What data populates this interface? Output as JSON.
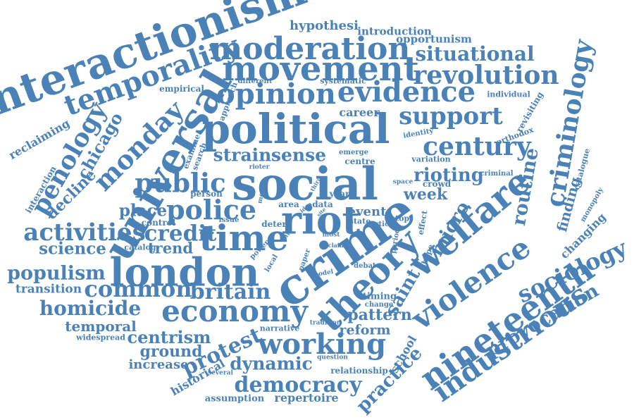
{
  "cloud": {
    "color": "#4a82b8",
    "background": "#ffffff",
    "words": [
      {
        "name": "word-interactionism",
        "text": "interactionism"
      },
      {
        "name": "word-temporality",
        "text": "temporality"
      },
      {
        "name": "word-hypothesi",
        "text": "hypothesi"
      },
      {
        "name": "word-introduction",
        "text": "introduction"
      },
      {
        "name": "word-opportunism",
        "text": "opportunism"
      },
      {
        "name": "word-moderation",
        "text": "moderation"
      },
      {
        "name": "word-situational",
        "text": "situational"
      },
      {
        "name": "word-movement",
        "text": "movement"
      },
      {
        "name": "word-revolution",
        "text": "revolution"
      },
      {
        "name": "word-criminology",
        "text": "criminology"
      },
      {
        "name": "word-empirical",
        "text": "empirical"
      },
      {
        "name": "word-different",
        "text": "different"
      },
      {
        "name": "word-systematic",
        "text": "systematic"
      },
      {
        "name": "word-opinion",
        "text": "opinion"
      },
      {
        "name": "word-evidence",
        "text": "evidence"
      },
      {
        "name": "word-individual",
        "text": "individual"
      },
      {
        "name": "word-approach",
        "text": "approach"
      },
      {
        "name": "word-career",
        "text": "career"
      },
      {
        "name": "word-support",
        "text": "support"
      },
      {
        "name": "word-revisiting",
        "text": "revisiting"
      },
      {
        "name": "word-universal",
        "text": "universal"
      },
      {
        "name": "word-political",
        "text": "political"
      },
      {
        "name": "word-identity",
        "text": "identity"
      },
      {
        "name": "word-orthodox",
        "text": "orthodox"
      },
      {
        "name": "word-penology",
        "text": "penology"
      },
      {
        "name": "word-chicago",
        "text": "chicago"
      },
      {
        "name": "word-monday",
        "text": "monday"
      },
      {
        "name": "word-century",
        "text": "century"
      },
      {
        "name": "word-reclaiming",
        "text": "reclaiming"
      },
      {
        "name": "word-examine",
        "text": "examine"
      },
      {
        "name": "word-search",
        "text": "search"
      },
      {
        "name": "word-strain",
        "text": "strain"
      },
      {
        "name": "word-sense",
        "text": "sense"
      },
      {
        "name": "word-emerge",
        "text": "emerge"
      },
      {
        "name": "word-centre",
        "text": "centre"
      },
      {
        "name": "word-variation",
        "text": "variation"
      },
      {
        "name": "word-catalogue",
        "text": "catalogue"
      },
      {
        "name": "word-interaction",
        "text": "interaction"
      },
      {
        "name": "word-rioter",
        "text": "rioter"
      },
      {
        "name": "word-public",
        "text": "public"
      },
      {
        "name": "word-social",
        "text": "social"
      },
      {
        "name": "word-rioting",
        "text": "rioting"
      },
      {
        "name": "word-criminal",
        "text": "criminal"
      },
      {
        "name": "word-decline",
        "text": "decline"
      },
      {
        "name": "word-space",
        "text": "space"
      },
      {
        "name": "word-crowd",
        "text": "crowd"
      },
      {
        "name": "word-routine",
        "text": "routine"
      },
      {
        "name": "word-week",
        "text": "week"
      },
      {
        "name": "word-finding",
        "text": "finding"
      },
      {
        "name": "word-monopoly",
        "text": "monopoly"
      },
      {
        "name": "word-person",
        "text": "person"
      },
      {
        "name": "word-more",
        "text": "more"
      },
      {
        "name": "word-third",
        "text": "third"
      },
      {
        "name": "word-year",
        "text": "year"
      },
      {
        "name": "word-place",
        "text": "place"
      },
      {
        "name": "word-police",
        "text": "police"
      },
      {
        "name": "word-area",
        "text": "area"
      },
      {
        "name": "word-idea",
        "text": "idea"
      },
      {
        "name": "word-data",
        "text": "data"
      },
      {
        "name": "word-site",
        "text": "site"
      },
      {
        "name": "word-event",
        "text": "event"
      },
      {
        "name": "word-welfare",
        "text": "welfare"
      },
      {
        "name": "word-riot",
        "text": "riot"
      },
      {
        "name": "word-activities",
        "text": "activities"
      },
      {
        "name": "word-control",
        "text": "control"
      },
      {
        "name": "word-issue",
        "text": "issue"
      },
      {
        "name": "word-deter",
        "text": "deter"
      },
      {
        "name": "word-state",
        "text": "state"
      },
      {
        "name": "word-stop",
        "text": "stop"
      },
      {
        "name": "word-article",
        "text": "article"
      },
      {
        "name": "word-effect",
        "text": "effect"
      },
      {
        "name": "word-micro",
        "text": "micro"
      },
      {
        "name": "word-changing",
        "text": "changing"
      },
      {
        "name": "word-credit",
        "text": "credit"
      },
      {
        "name": "word-rate",
        "text": "rate"
      },
      {
        "name": "word-time",
        "text": "time"
      },
      {
        "name": "word-most",
        "text": "most"
      },
      {
        "name": "word-claim",
        "text": "claim"
      },
      {
        "name": "word-period",
        "text": "period"
      },
      {
        "name": "word-catalog",
        "text": "catalog"
      },
      {
        "name": "word-trend",
        "text": "trend"
      },
      {
        "name": "word-science",
        "text": "science"
      },
      {
        "name": "word-power",
        "text": "power"
      },
      {
        "name": "word-local",
        "text": "local"
      },
      {
        "name": "word-paper",
        "text": "paper"
      },
      {
        "name": "word-model",
        "text": "model"
      },
      {
        "name": "word-shape",
        "text": "shape"
      },
      {
        "name": "word-london",
        "text": "london"
      },
      {
        "name": "word-sociology",
        "text": "sociology"
      },
      {
        "name": "word-debate",
        "text": "debate"
      },
      {
        "name": "word-populism",
        "text": "populism"
      },
      {
        "name": "word-crime",
        "text": "crime"
      },
      {
        "name": "word-transition",
        "text": "transition"
      },
      {
        "name": "word-common",
        "text": "common"
      },
      {
        "name": "word-britain",
        "text": "britain"
      },
      {
        "name": "word-saint",
        "text": "saint"
      },
      {
        "name": "word-violence",
        "text": "violence"
      },
      {
        "name": "word-theory",
        "text": "theory"
      },
      {
        "name": "word-provocation",
        "text": "provocation"
      },
      {
        "name": "word-timing",
        "text": "timing"
      },
      {
        "name": "word-change",
        "text": "change"
      },
      {
        "name": "word-homicide",
        "text": "homicide"
      },
      {
        "name": "word-economy",
        "text": "economy"
      },
      {
        "name": "word-pattern",
        "text": "pattern"
      },
      {
        "name": "word-nineteenth",
        "text": "nineteenth"
      },
      {
        "name": "word-temporal",
        "text": "temporal"
      },
      {
        "name": "word-narrative",
        "text": "narrative"
      },
      {
        "name": "word-tradition",
        "text": "tradition"
      },
      {
        "name": "word-reform",
        "text": "reform"
      },
      {
        "name": "word-widespread",
        "text": "widespread"
      },
      {
        "name": "word-centrism",
        "text": "centrism"
      },
      {
        "name": "word-industrious",
        "text": "industrious"
      },
      {
        "name": "word-ground",
        "text": "ground"
      },
      {
        "name": "word-working",
        "text": "working"
      },
      {
        "name": "word-protest",
        "text": "protest"
      },
      {
        "name": "word-question",
        "text": "question"
      },
      {
        "name": "word-school",
        "text": "school"
      },
      {
        "name": "word-increase",
        "text": "increase"
      },
      {
        "name": "word-dynamic",
        "text": "dynamic"
      },
      {
        "name": "word-historical",
        "text": "historical"
      },
      {
        "name": "word-relationship",
        "text": "relationship"
      },
      {
        "name": "word-practice",
        "text": "practice"
      },
      {
        "name": "word-several",
        "text": "several"
      },
      {
        "name": "word-democracy",
        "text": "democracy"
      },
      {
        "name": "word-assumption",
        "text": "assumption"
      },
      {
        "name": "word-repertoire",
        "text": "repertoire"
      }
    ]
  }
}
